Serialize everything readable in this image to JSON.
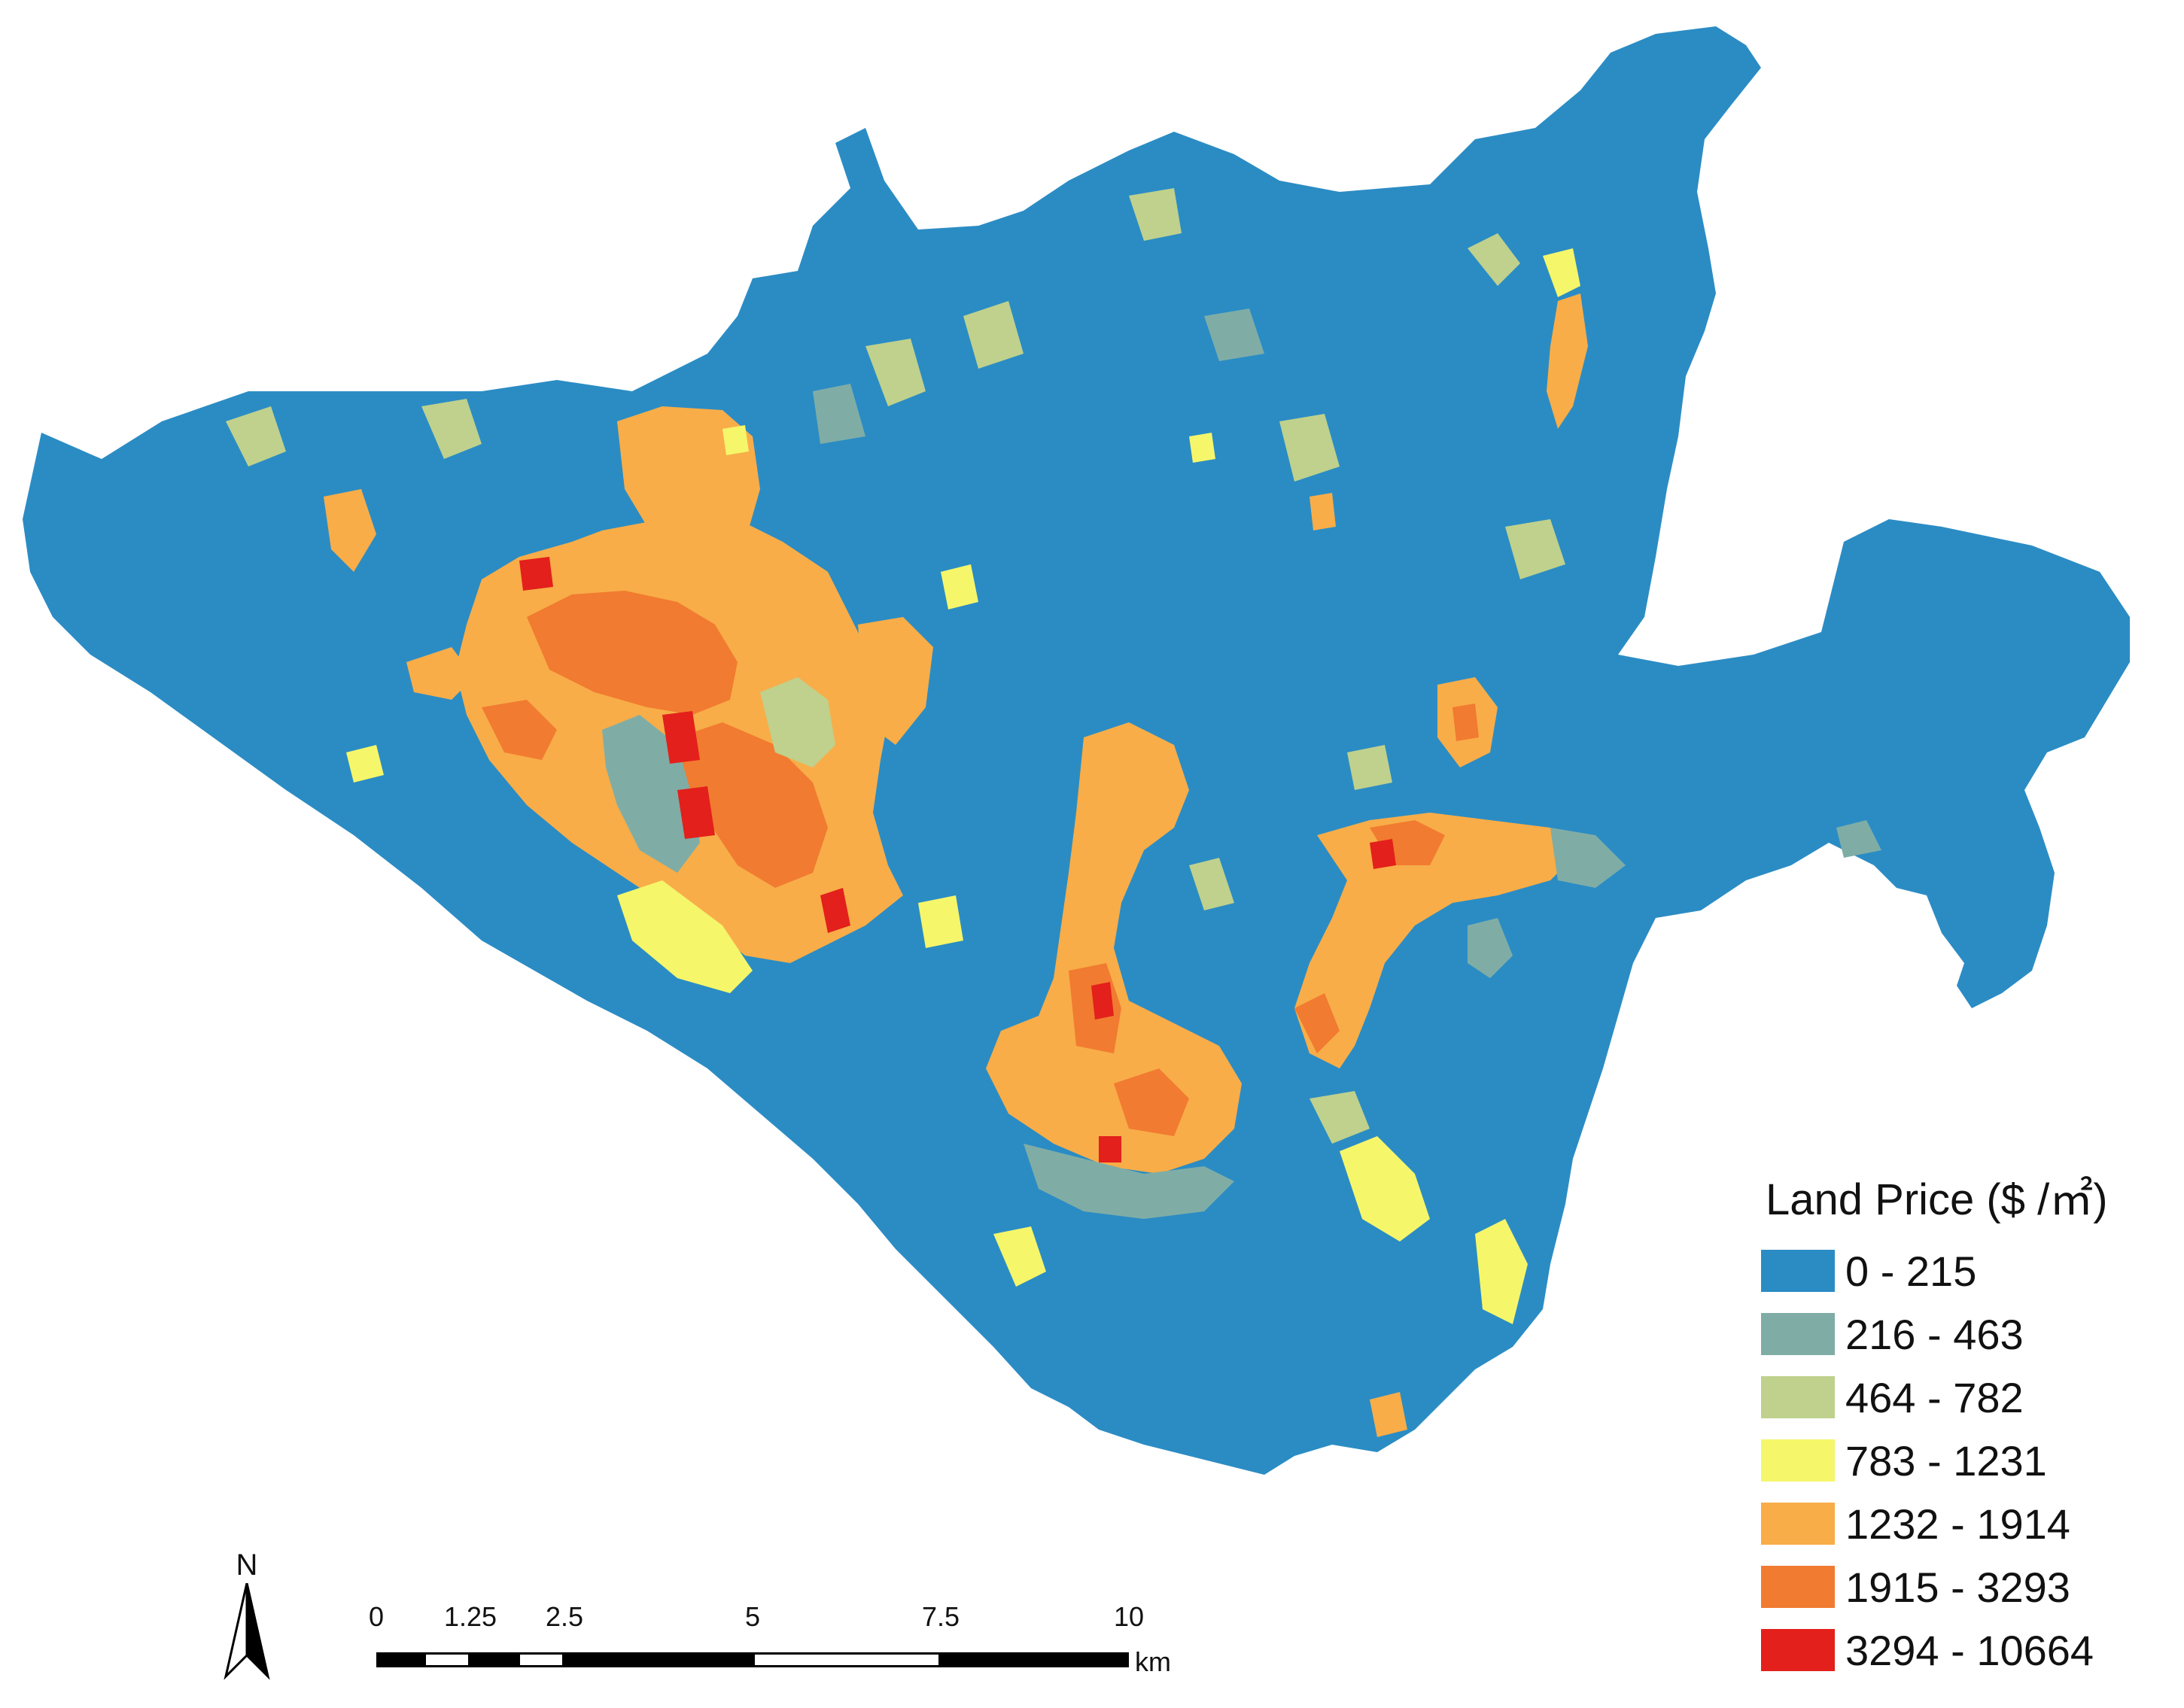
{
  "legend": {
    "title": "Land Price ($ /㎡)",
    "classes": [
      {
        "label": "0 - 215",
        "color": "#2b8cc4"
      },
      {
        "label": "216 - 463",
        "color": "#7fada6"
      },
      {
        "label": "464 - 782",
        "color": "#bfd18c"
      },
      {
        "label": "783 - 1231",
        "color": "#f5f66a"
      },
      {
        "label": "1232 - 1914",
        "color": "#f8ad48"
      },
      {
        "label": "1915 - 3293",
        "color": "#f17b30"
      },
      {
        "label": "3294 - 10664",
        "color": "#e3201b"
      }
    ]
  },
  "north_arrow": {
    "label": "N"
  },
  "scale_bar": {
    "ticks": [
      "0",
      "1.25",
      "2.5",
      "5",
      "7.5",
      "10"
    ],
    "unit": "km"
  }
}
